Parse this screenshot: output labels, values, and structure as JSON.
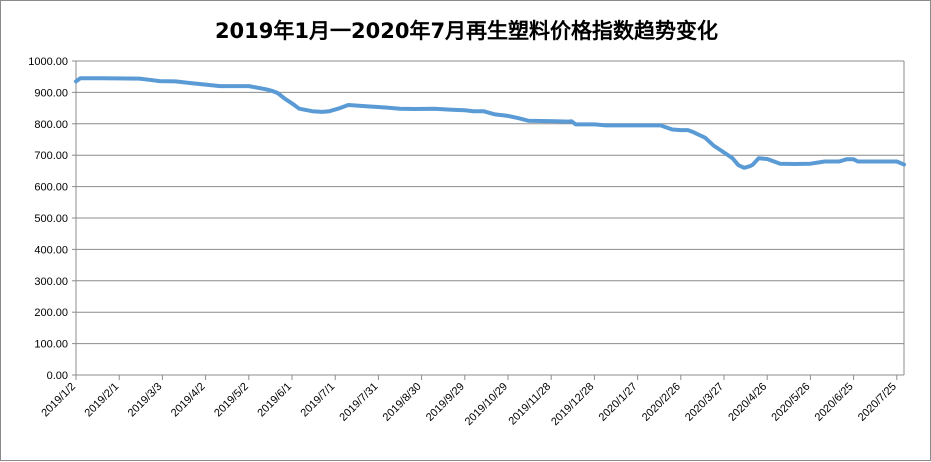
{
  "chart_data": {
    "type": "line",
    "title": "2019年1月一2020年7月再生塑料价格指数趋势变化",
    "xlabel": "",
    "ylabel": "",
    "ylim": [
      0,
      1000
    ],
    "y_ticks": [
      "0.00",
      "100.00",
      "200.00",
      "300.00",
      "400.00",
      "500.00",
      "600.00",
      "700.00",
      "800.00",
      "900.00",
      "1000.00"
    ],
    "x_ticks": [
      "2019/1/2",
      "2019/2/1",
      "2019/3/3",
      "2019/4/2",
      "2019/5/2",
      "2019/6/1",
      "2019/7/1",
      "2019/7/31",
      "2019/8/30",
      "2019/9/29",
      "2019/10/29",
      "2019/11/28",
      "2019/12/28",
      "2020/1/27",
      "2020/2/26",
      "2020/3/27",
      "2020/4/26",
      "2020/5/26",
      "2020/6/25",
      "2020/7/25"
    ],
    "x_range": [
      "2019/1/2",
      "2020/7/30"
    ],
    "grid": true,
    "line_color": "#5B9BD5",
    "series": [
      {
        "x": [
          "2019/1/2",
          "2019/1/5",
          "2019/1/20",
          "2019/2/15",
          "2019/2/22",
          "2019/3/1",
          "2019/3/12",
          "2019/3/22",
          "2019/4/2",
          "2019/4/12",
          "2019/5/2",
          "2019/5/14",
          "2019/5/18",
          "2019/5/22",
          "2019/5/27",
          "2019/6/1",
          "2019/6/6",
          "2019/6/15",
          "2019/6/22",
          "2019/6/27",
          "2019/7/3",
          "2019/7/10",
          "2019/7/25",
          "2019/8/5",
          "2019/8/15",
          "2019/8/25",
          "2019/9/8",
          "2019/9/20",
          "2019/9/29",
          "2019/10/5",
          "2019/10/12",
          "2019/10/20",
          "2019/10/29",
          "2019/11/5",
          "2019/11/12",
          "2019/12/1",
          "2019/12/10",
          "2019/12/12",
          "2019/12/15",
          "2019/12/28",
          "2020/1/5",
          "2020/1/15",
          "2020/2/10",
          "2020/2/12",
          "2020/2/20",
          "2020/2/26",
          "2020/3/2",
          "2020/3/5",
          "2020/3/12",
          "2020/3/14",
          "2020/3/20",
          "2020/3/25",
          "2020/4/2",
          "2020/4/6",
          "2020/4/10",
          "2020/4/14",
          "2020/4/16",
          "2020/4/20",
          "2020/4/26",
          "2020/5/5",
          "2020/5/15",
          "2020/5/26",
          "2020/6/1",
          "2020/6/5",
          "2020/6/15",
          "2020/6/20",
          "2020/6/25",
          "2020/6/28",
          "2020/7/5",
          "2020/7/15",
          "2020/7/25",
          "2020/7/30"
        ],
        "y": [
          935,
          945,
          945,
          944,
          940,
          936,
          935,
          930,
          925,
          920,
          920,
          910,
          905,
          898,
          880,
          865,
          848,
          840,
          838,
          840,
          848,
          860,
          855,
          852,
          848,
          847,
          848,
          845,
          843,
          840,
          840,
          830,
          825,
          818,
          810,
          808,
          807,
          808,
          798,
          798,
          795,
          795,
          795,
          795,
          782,
          780,
          780,
          775,
          760,
          755,
          730,
          715,
          690,
          668,
          660,
          665,
          670,
          690,
          688,
          673,
          672,
          673,
          677,
          680,
          680,
          687,
          687,
          680,
          680,
          680,
          680,
          670
        ]
      }
    ]
  }
}
